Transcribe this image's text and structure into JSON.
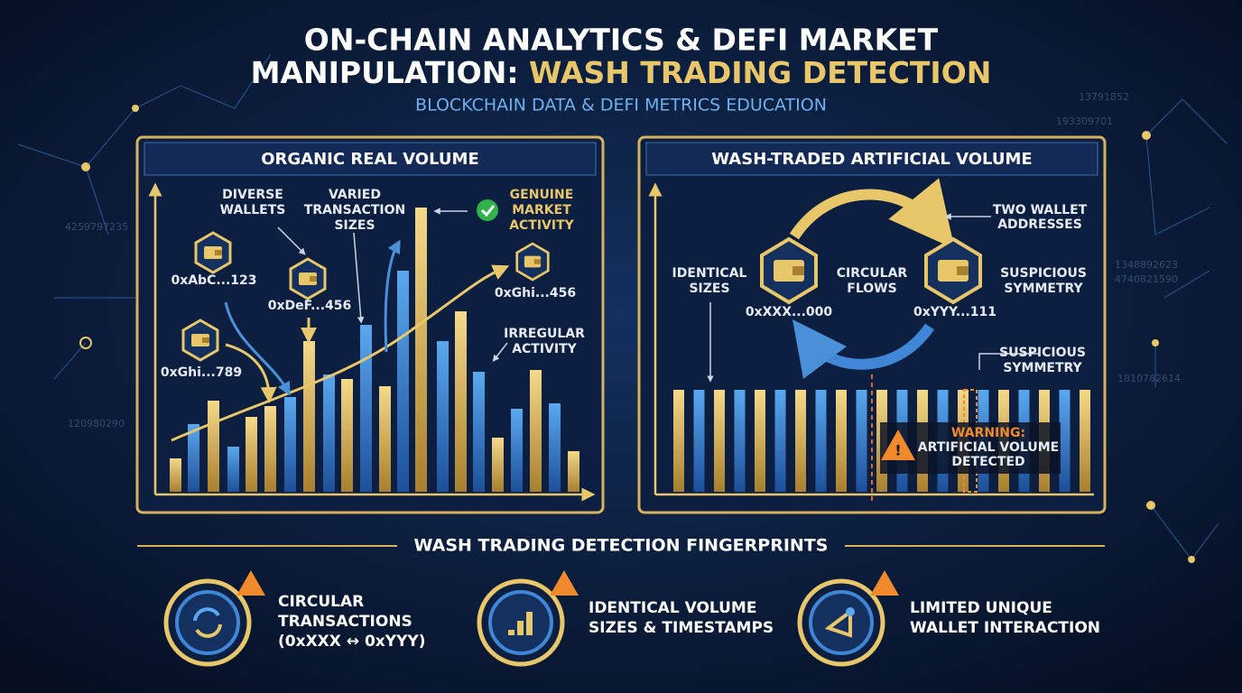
{
  "header": {
    "title_line1": "ON-CHAIN ANALYTICS & DEFI MARKET",
    "title_line2_white": "MANIPULATION:",
    "title_line2_gold": "WASH TRADING DETECTION",
    "subtitle": "BLOCKCHAIN DATA & DEFI METRICS EDUCATION"
  },
  "left_panel": {
    "title": "ORGANIC REAL VOLUME",
    "diverse_wallets": [
      "DIVERSE",
      "WALLETS"
    ],
    "varied_sizes": [
      "VARIED",
      "TRANSACTION",
      "SIZES"
    ],
    "genuine_activity": [
      "GENUINE",
      "MARKET",
      "ACTIVITY"
    ],
    "irregular_activity": [
      "IRREGULAR",
      "ACTIVITY"
    ],
    "wallets": [
      "0xAbC...123",
      "0xDeF...456",
      "0xGhi...789",
      "0xGhi...456"
    ]
  },
  "right_panel": {
    "title": "WASH-TRADED ARTIFICIAL VOLUME",
    "two_wallets": [
      "TWO WALLET",
      "ADDRESSES"
    ],
    "identical_sizes": [
      "IDENTICAL",
      "SIZES"
    ],
    "circular_flows": [
      "CIRCULAR",
      "FLOWS"
    ],
    "suspicious_symmetry_top": [
      "SUSPICIOUS",
      "SYMMETRY"
    ],
    "suspicious_symmetry_bottom": [
      "SUSPICIOUS",
      "SYMMETRY"
    ],
    "wallets": [
      "0xXXX...000",
      "0xYYY...111"
    ],
    "warning": [
      "WARNING:",
      "ARTIFICIAL VOLUME",
      "DETECTED"
    ]
  },
  "fingerprints": {
    "title": "WASH TRADING DETECTION FINGERPRINTS",
    "items": [
      [
        "CIRCULAR",
        "TRANSACTIONS",
        "(0xXXX ↔ 0xYYY)"
      ],
      [
        "IDENTICAL VOLUME",
        "SIZES & TIMESTAMPS"
      ],
      [
        "LIMITED UNIQUE",
        "WALLET INTERACTION"
      ]
    ]
  },
  "decor_numbers": [
    "13791852",
    "193309701",
    "4259797235",
    "1348892623",
    "4740821590",
    "1810782614",
    "120980290"
  ]
}
